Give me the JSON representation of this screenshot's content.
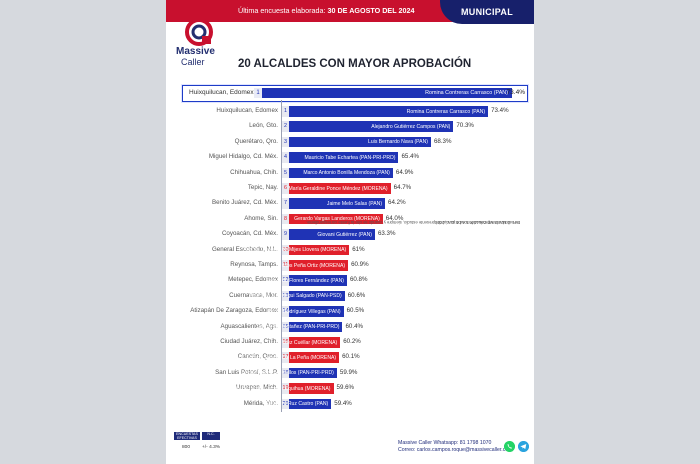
{
  "header": {
    "survey_prefix": "Última encuesta elaborada:",
    "survey_date": "30 DE AGOSTO DEL 2024",
    "tag": "MUNICIPAL"
  },
  "brand": {
    "line1": "Massive",
    "line2": "Caller"
  },
  "highlight": {
    "city": "Huixquilucan, Edomex",
    "rank": "1",
    "candidate": "Romina Contreras Carrasco (PAN)",
    "value": "73.4%"
  },
  "chart_data": {
    "type": "bar",
    "title": "20 ALCALDES CON MAYOR APROBACIÓN",
    "xlim": [
      55,
      75
    ],
    "categories": [
      "Huixquilucan, Edomex",
      "León, Gto.",
      "Querétaro, Qro.",
      "Miguel Hidalgo, Cd. Méx.",
      "Chihuahua, Chih.",
      "Tepic, Nay.",
      "Benito Juárez, Cd. Méx.",
      "Ahome, Sin.",
      "Coyoacán, Cd. Méx.",
      "General Escobedo, N.L.",
      "Reynosa, Tamps.",
      "Metepec, Edomex",
      "Cuernavaca, Mor.",
      "Atizapán De Zaragoza, Edomex",
      "Aguascalientes, Ags.",
      "Ciudad Juárez, Chih.",
      "Cancún, Qroo.",
      "San Luis Potosí, S.L.P.",
      "Uruapan, Mich.",
      "Mérida, Yuc."
    ],
    "ranks": [
      "1",
      "2",
      "3",
      "4",
      "5",
      "6",
      "7",
      "8",
      "9",
      "10",
      "11",
      "12",
      "13",
      "14",
      "15",
      "16",
      "17",
      "18",
      "19",
      "20"
    ],
    "candidates": [
      "Romina Contreras Carrasco (PAN)",
      "Alejandro Gutiérrez Campos (PAN)",
      "Luis Bernardo Nava (PAN)",
      "Mauricio Tabe Echartea (PAN-PRI-PRD)",
      "Marco Antonio Bonilla Mendoza (PAN)",
      "María Geraldine Ponce Méndez (MORENA)",
      "Jaime Melo Salas (PAN)",
      "Gerardo Vargas Landeros (MORENA)",
      "Giovani Gutiérrez (PAN)",
      "Andrés Concepción Mijes Llovera (MORENA)",
      "Carlos Peña Ortiz (MORENA)",
      "Fernando Flores Fernández (PAN)",
      "José Luis Urióstegui Salgado (PAN-PSD)",
      "Pedro Rodríguez Villegas (PAN)",
      "Leonardo Montañez (PAN-PRI-PRD)",
      "Cruz Pérez Cuéllar (MORENA)",
      "Ana Patricia Peralta De La Peña (MORENA)",
      "Enrique Galindo Ceballos (PAN-PRI-PRD)",
      "Ignacio Benjamín Campos Equihua (MORENA)",
      "Alejandro Ruz Castro (PAN)"
    ],
    "values": [
      73.4,
      70.3,
      68.3,
      65.4,
      64.9,
      64.7,
      64.2,
      64.0,
      63.3,
      61.0,
      60.9,
      60.8,
      60.6,
      60.5,
      60.4,
      60.2,
      60.1,
      59.9,
      59.6,
      59.4
    ],
    "value_labels": [
      "73.4%",
      "70.3%",
      "68.3%",
      "65.4%",
      "64.9%",
      "64.7%",
      "64.2%",
      "64.0%",
      "63.3%",
      "61%",
      "60.9%",
      "60.8%",
      "60.6%",
      "60.5%",
      "60.4%",
      "60.2%",
      "60.1%",
      "59.9%",
      "59.6%",
      "59.4%"
    ],
    "colors": [
      "#1f33b5",
      "#1f33b5",
      "#1f33b5",
      "#1f33b5",
      "#1f33b5",
      "#e0202b",
      "#1f33b5",
      "#e0202b",
      "#1f33b5",
      "#e0202b",
      "#e0202b",
      "#1f33b5",
      "#1f33b5",
      "#1f33b5",
      "#1f33b5",
      "#e0202b",
      "#e0202b",
      "#1f33b5",
      "#e0202b",
      "#1f33b5"
    ]
  },
  "legal": {
    "line1": "D.R. © MASSIVE CALLER S.A DE C.V., 2024",
    "line2": "Se autoriza la reproducción total o parcial del presente estudio, siempre y cuando se cite la fuente correspondiente."
  },
  "footer": {
    "table_headers": [
      "ENCUESTAS EFECTIVAS",
      "N.C."
    ],
    "table_values": [
      "800",
      "+/- 4.3%"
    ],
    "contact_line1": "Massive Caller Whatsapp: 81 1798 1070",
    "contact_line2": "Correo: carlos.campos.roque@massivecaller.com",
    "icons": [
      "whatsapp-icon",
      "telegram-icon"
    ]
  },
  "theme": {
    "red": "#c8102e",
    "navy": "#17206b",
    "blue_bar": "#1f33b5",
    "red_bar": "#e0202b"
  }
}
